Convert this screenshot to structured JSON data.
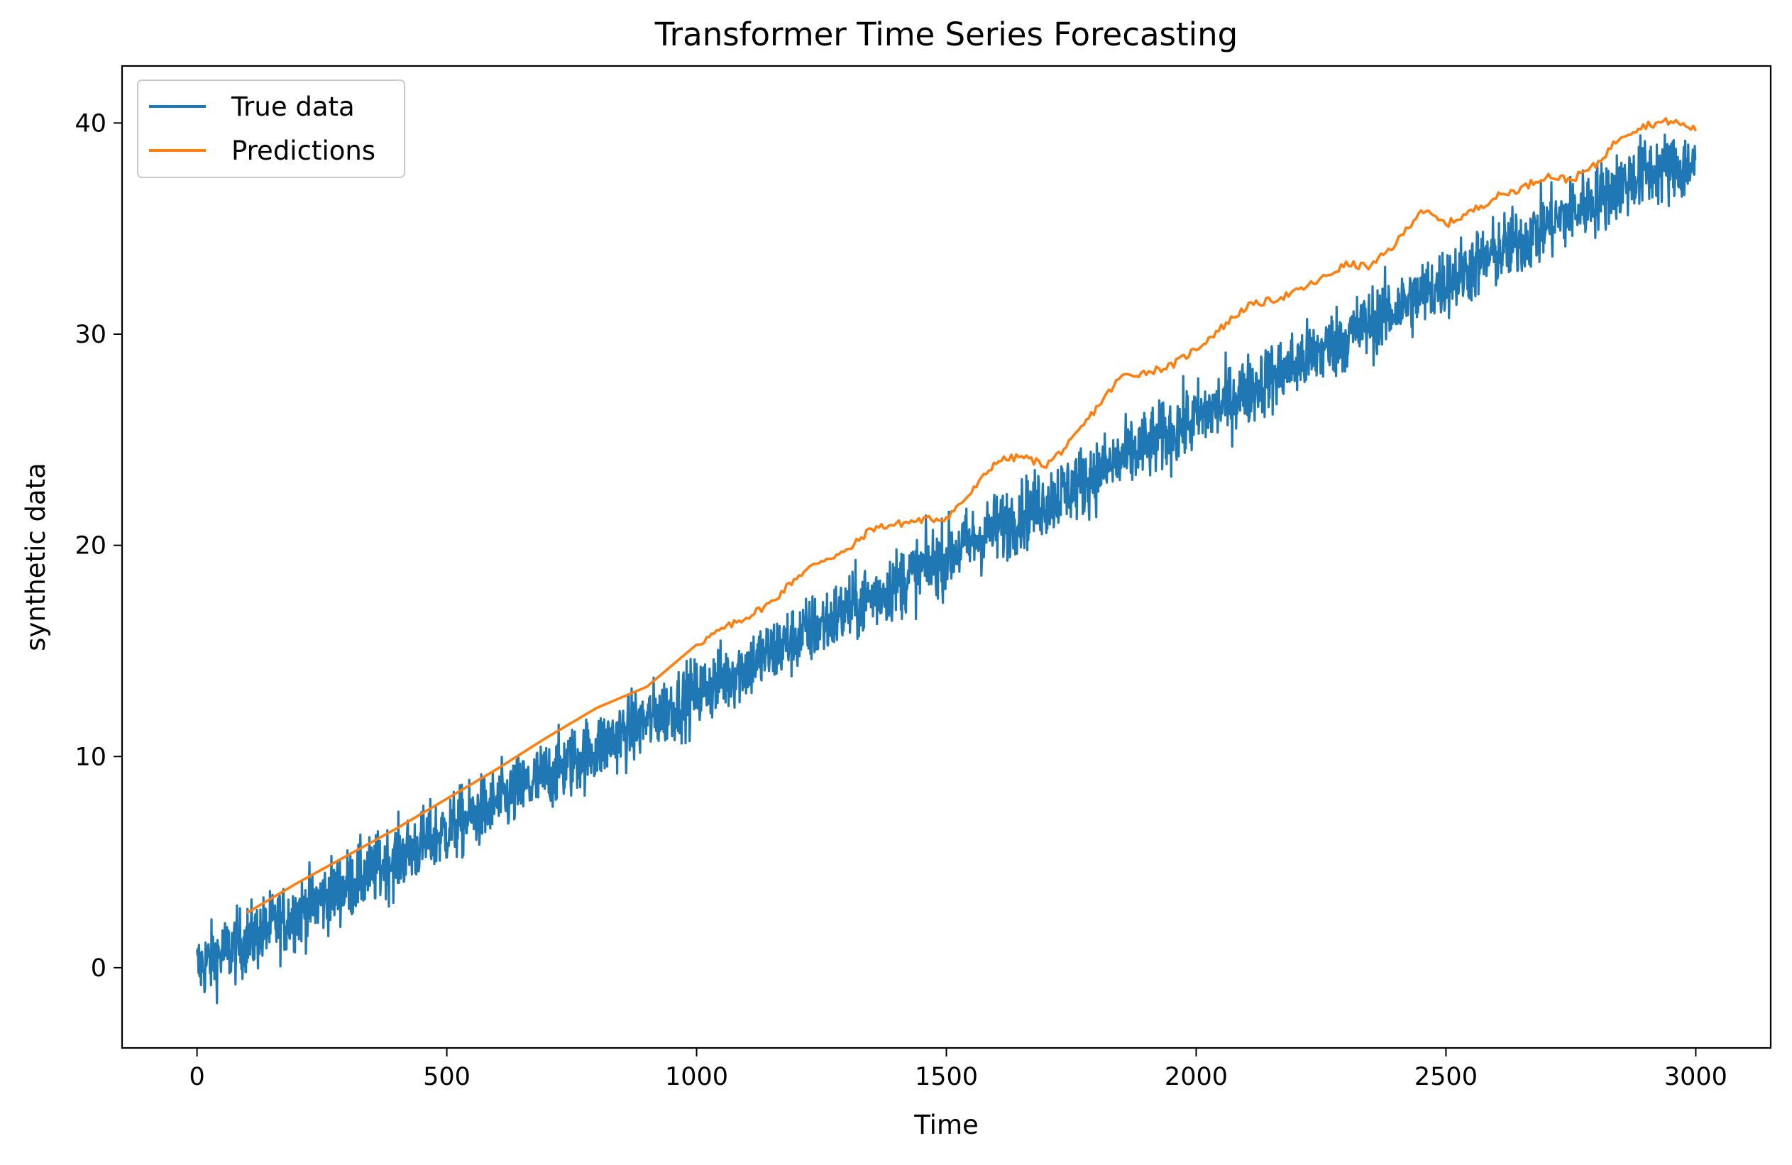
{
  "chart_data": {
    "type": "line",
    "title": "Transformer Time Series Forecasting",
    "xlabel": "Time",
    "ylabel": "synthetic data",
    "xlim": [
      -150,
      3150
    ],
    "ylim": [
      -3.8,
      42.7
    ],
    "xticks": [
      0,
      500,
      1000,
      1500,
      2000,
      2500,
      3000
    ],
    "yticks": [
      0,
      10,
      20,
      30,
      40
    ],
    "grid": false,
    "legend_position": "top-left",
    "series": [
      {
        "name": "True data",
        "color": "#1f77b4",
        "x": [
          0,
          100,
          200,
          300,
          400,
          500,
          600,
          700,
          800,
          900,
          1000,
          1100,
          1200,
          1300,
          1400,
          1500,
          1600,
          1700,
          1800,
          1900,
          2000,
          2100,
          2200,
          2300,
          2400,
          2500,
          2600,
          2700,
          2800,
          2900,
          3000
        ],
        "trend": [
          0.0,
          1.3,
          2.6,
          3.9,
          5.2,
          6.5,
          7.8,
          9.1,
          10.4,
          11.7,
          13.0,
          14.3,
          15.6,
          16.9,
          18.2,
          19.5,
          20.8,
          22.1,
          23.4,
          24.7,
          26.0,
          27.3,
          28.6,
          29.9,
          31.2,
          32.5,
          33.8,
          35.1,
          36.4,
          37.7,
          38.0
        ],
        "noise_amplitude": 1.6,
        "n_points": 3000
      },
      {
        "name": "Predictions",
        "color": "#ff7f0e",
        "x": [
          100,
          200,
          300,
          400,
          500,
          600,
          700,
          800,
          900,
          1000,
          1050,
          1100,
          1150,
          1200,
          1250,
          1300,
          1350,
          1400,
          1450,
          1500,
          1550,
          1600,
          1650,
          1700,
          1750,
          1800,
          1850,
          1900,
          1950,
          2000,
          2050,
          2100,
          2150,
          2200,
          2250,
          2300,
          2350,
          2400,
          2450,
          2500,
          2550,
          2600,
          2650,
          2700,
          2750,
          2800,
          2850,
          2900,
          2950,
          3000
        ],
        "values": [
          2.6,
          4.0,
          5.3,
          6.6,
          8.0,
          9.4,
          10.9,
          12.3,
          13.3,
          15.3,
          16.0,
          16.6,
          17.3,
          18.5,
          19.3,
          19.7,
          20.8,
          21.0,
          21.2,
          21.3,
          22.5,
          24.0,
          24.2,
          23.8,
          24.9,
          26.5,
          28.0,
          28.2,
          28.5,
          29.3,
          30.3,
          31.3,
          31.6,
          32.0,
          32.6,
          33.3,
          33.2,
          34.3,
          35.9,
          35.2,
          35.8,
          36.5,
          36.9,
          37.5,
          37.3,
          38.0,
          39.4,
          39.9,
          40.1,
          39.7
        ]
      }
    ]
  }
}
